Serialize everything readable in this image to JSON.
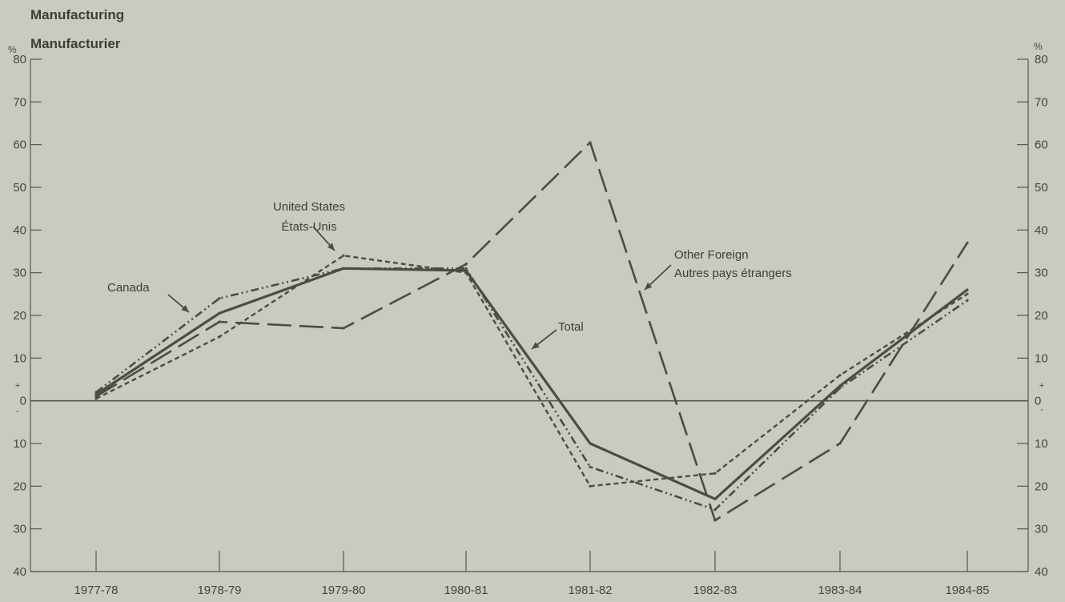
{
  "title_en": "Manufacturing",
  "title_fr": "Manufacturier",
  "axis_unit": "%",
  "plus_sign": "+",
  "minus_sign": "-",
  "chart_data": {
    "type": "line",
    "categories": [
      "1977-78",
      "1978-79",
      "1979-80",
      "1980-81",
      "1981-82",
      "1982-83",
      "1983-84",
      "1984-85"
    ],
    "y_tick_labels": [
      "80",
      "70",
      "60",
      "50",
      "40",
      "30",
      "20",
      "10",
      "0",
      "10",
      "20",
      "30",
      "40"
    ],
    "ylim": [
      -40,
      80
    ],
    "y_ticks": [
      80,
      70,
      60,
      50,
      40,
      30,
      20,
      10,
      0,
      -10,
      -20,
      -30,
      -40
    ],
    "dual_y_axis": true,
    "grid": false,
    "series": [
      {
        "name": "Total",
        "style": "solid",
        "values": [
          1.5,
          20.5,
          31,
          30.5,
          -10,
          -23,
          3.5,
          26
        ]
      },
      {
        "name": "Canada",
        "style": "dash-dot-dot",
        "values": [
          2,
          24,
          31,
          31,
          -15.5,
          -25.5,
          3,
          23.5
        ]
      },
      {
        "name": "United States",
        "style": "short-dash",
        "values": [
          0.5,
          15,
          34,
          30,
          -20,
          -17,
          6,
          25
        ]
      },
      {
        "name": "Other Foreign",
        "style": "long-dash",
        "values": [
          1,
          18.5,
          17,
          32,
          60.5,
          -28,
          -10,
          37
        ]
      }
    ],
    "annotations": [
      {
        "id": "canada",
        "lines": [
          "Canada"
        ]
      },
      {
        "id": "united_states",
        "lines": [
          "United States",
          "États-Unis"
        ]
      },
      {
        "id": "other_foreign",
        "lines": [
          "Other Foreign",
          "Autres pays étrangers"
        ]
      },
      {
        "id": "total",
        "lines": [
          "Total"
        ]
      }
    ]
  },
  "colors": {
    "background": "#c9cbc1",
    "line": "#4a4c47",
    "axis": "#55574f"
  }
}
